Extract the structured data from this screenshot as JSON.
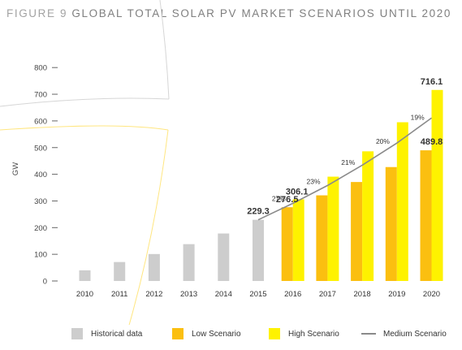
{
  "title": {
    "prefix": "FIGURE 9",
    "text": "GLOBAL TOTAL SOLAR PV MARKET SCENARIOS UNTIL 2020"
  },
  "colors": {
    "historical": "#cdcdcd",
    "low": "#fbbf10",
    "high": "#fef200",
    "medium": "#8a8a8a",
    "deco": "#ffe680"
  },
  "chart_data": {
    "type": "bar",
    "ylabel": "GW",
    "ylim": [
      0,
      800
    ],
    "yticks": [
      0,
      100,
      200,
      300,
      400,
      500,
      600,
      700,
      800
    ],
    "categories": [
      "2010",
      "2011",
      "2012",
      "2013",
      "2014",
      "2015",
      "2016",
      "2017",
      "2018",
      "2019",
      "2020"
    ],
    "series": [
      {
        "name": "Historical data",
        "kind": "bar",
        "values": [
          40,
          71,
          101,
          138,
          178,
          229.3,
          null,
          null,
          null,
          null,
          null
        ]
      },
      {
        "name": "Low Scenario",
        "kind": "bar",
        "values": [
          null,
          null,
          null,
          null,
          null,
          null,
          276.5,
          321,
          371,
          427,
          489.8
        ]
      },
      {
        "name": "High Scenario",
        "kind": "bar",
        "values": [
          null,
          null,
          null,
          null,
          null,
          null,
          306.1,
          391,
          486,
          595,
          716.1
        ]
      },
      {
        "name": "Medium Scenario",
        "kind": "line",
        "values": [
          null,
          null,
          null,
          null,
          null,
          229.3,
          291,
          358,
          434,
          517,
          611
        ]
      }
    ],
    "value_labels": [
      {
        "category": "2015",
        "value": 229.3,
        "text": "229.3"
      },
      {
        "category": "2016",
        "value": 276.5,
        "text": "276.5"
      },
      {
        "category": "2016",
        "value": 306.1,
        "text": "306.1"
      },
      {
        "category": "2020",
        "value": 489.8,
        "text": "489.8"
      },
      {
        "category": "2020",
        "value": 716.1,
        "text": "716.1"
      }
    ],
    "growth_labels": [
      {
        "category": "2016",
        "text": "27%"
      },
      {
        "category": "2017",
        "text": "23%"
      },
      {
        "category": "2018",
        "text": "21%"
      },
      {
        "category": "2019",
        "text": "20%"
      },
      {
        "category": "2020",
        "text": "19%"
      }
    ],
    "legend": [
      {
        "label": "Historical data",
        "kind": "box",
        "color": "#cdcdcd"
      },
      {
        "label": "Low Scenario",
        "kind": "box",
        "color": "#fbbf10"
      },
      {
        "label": "High Scenario",
        "kind": "box",
        "color": "#fef200"
      },
      {
        "label": "Medium Scenario",
        "kind": "line",
        "color": "#8a8a8a"
      }
    ],
    "legend_position": "bottom",
    "grid": false
  }
}
